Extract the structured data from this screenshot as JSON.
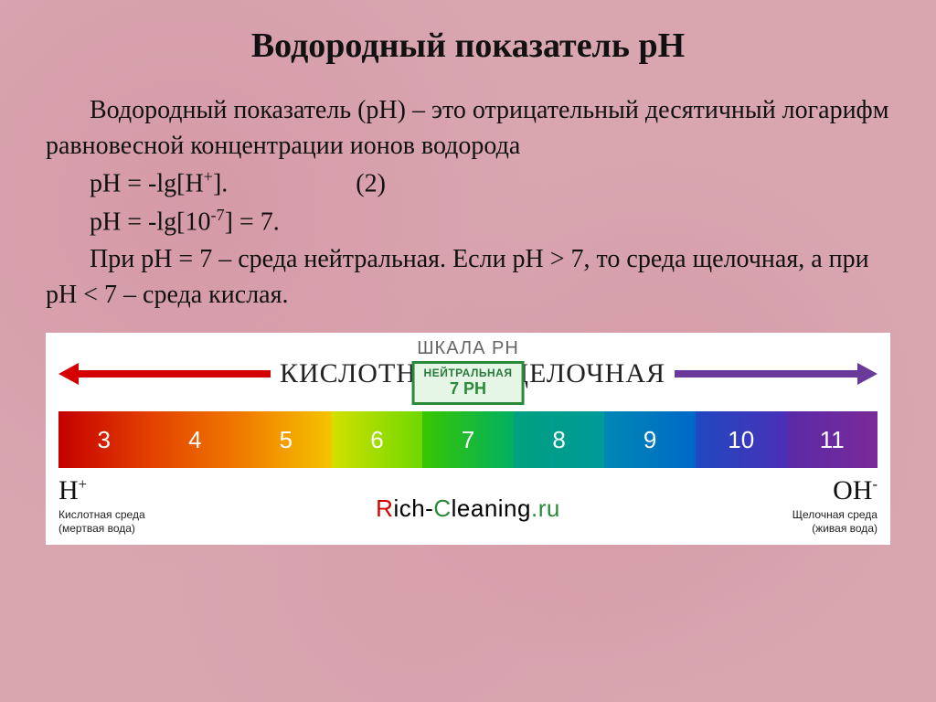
{
  "title": "Водородный показатель рН",
  "para1": "Водородный показатель (рН) – это отрицательный десятичный логарифм равновесной концентрации ионов водорода",
  "eq1_left": "pH = -lg[H",
  "eq1_sup": "+",
  "eq1_right": "].",
  "eq1_num": "(2)",
  "eq2_left": "pH = -lg[10",
  "eq2_sup": "-7",
  "eq2_right": "] = 7.",
  "para2": "При рН = 7 – среда нейтральная. Если рН > 7, то среда щелочная, а при рН < 7 – среда кислая.",
  "scale": {
    "acid_label": "КИСЛОТНАЯ",
    "alk_label": "ЩЕЛОЧНАЯ",
    "shkala": "ШКАЛА   РН",
    "neutral_label": "НЕЙТРАЛЬНАЯ",
    "neutral_value": "7 PH",
    "arrow_acid_color": "#d40000",
    "arrow_alk_color": "#6a3a9a",
    "segments": [
      {
        "n": "3",
        "bg": "linear-gradient(to right,#c40000,#e34000)"
      },
      {
        "n": "4",
        "bg": "linear-gradient(to right,#e34000,#f07a00)"
      },
      {
        "n": "5",
        "bg": "linear-gradient(to right,#f07a00,#f5c400)"
      },
      {
        "n": "6",
        "bg": "linear-gradient(to right,#d2e000,#6fd800)"
      },
      {
        "n": "7",
        "bg": "linear-gradient(to right,#39c600,#00b060)"
      },
      {
        "n": "8",
        "bg": "linear-gradient(to right,#00a080,#009a9a)"
      },
      {
        "n": "9",
        "bg": "linear-gradient(to right,#0088b4,#0068c8)"
      },
      {
        "n": "10",
        "bg": "linear-gradient(to right,#2048c0,#4a30b8)"
      },
      {
        "n": "11",
        "bg": "linear-gradient(to right,#5a2aa8,#7a2a98)"
      }
    ],
    "ion_left_sym": "H",
    "ion_left_sup": "+",
    "ion_left_line1": "Кислотная среда",
    "ion_left_line2": "(мертвая вода)",
    "ion_right_sym": "OH",
    "ion_right_sup": "-",
    "ion_right_line1": "Щелочная среда",
    "ion_right_line2": "(живая вода)",
    "brand_r": "R",
    "brand_rest": "ich-",
    "brand_c": "C",
    "brand_rest2": "leaning",
    "brand_ru": ".ru"
  }
}
